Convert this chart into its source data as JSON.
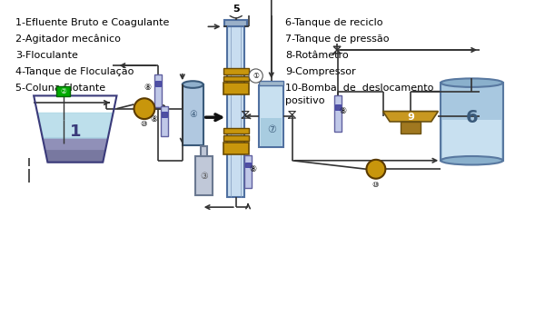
{
  "legend_left": [
    "1-Efluente Bruto e Coagulante",
    "2-Agitador mecânico",
    "3-Floculante",
    "4-Tanque de Floculação",
    "5-Coluna Flotante"
  ],
  "legend_right_lines": [
    "6-Tanque de reciclo",
    "7-Tanque de pressão",
    "8-Rotâmetro",
    "9-Compressor",
    "10-Bomba  de  deslocamento",
    "positivo"
  ],
  "bg_color": "#ffffff",
  "text_color": "#000000",
  "label_fontsize": 8.0,
  "pipe_color": "#333333",
  "gold_color": "#c8960c",
  "pump_color": "#c8960c",
  "col5_fill": "#c8ddf0",
  "col5_edge": "#5070a0",
  "tank1_water1": "#87ceeb",
  "tank1_water2": "#6080a0",
  "tank1_water3": "#9090b8",
  "tank6_fill": "#b8d8f0",
  "tank6_edge": "#5070a0",
  "tank7_fill": "#c8e0f0",
  "tank7_edge": "#5070a0",
  "tank4_fill": "#b0c8e0",
  "tank4_edge": "#3a5a7a",
  "rot_fill": "#c0c8e8",
  "rot_edge": "#6060a0",
  "green_box": "#00aa00",
  "compressor_fill": "#c89820",
  "compressor_edge": "#6a5010"
}
